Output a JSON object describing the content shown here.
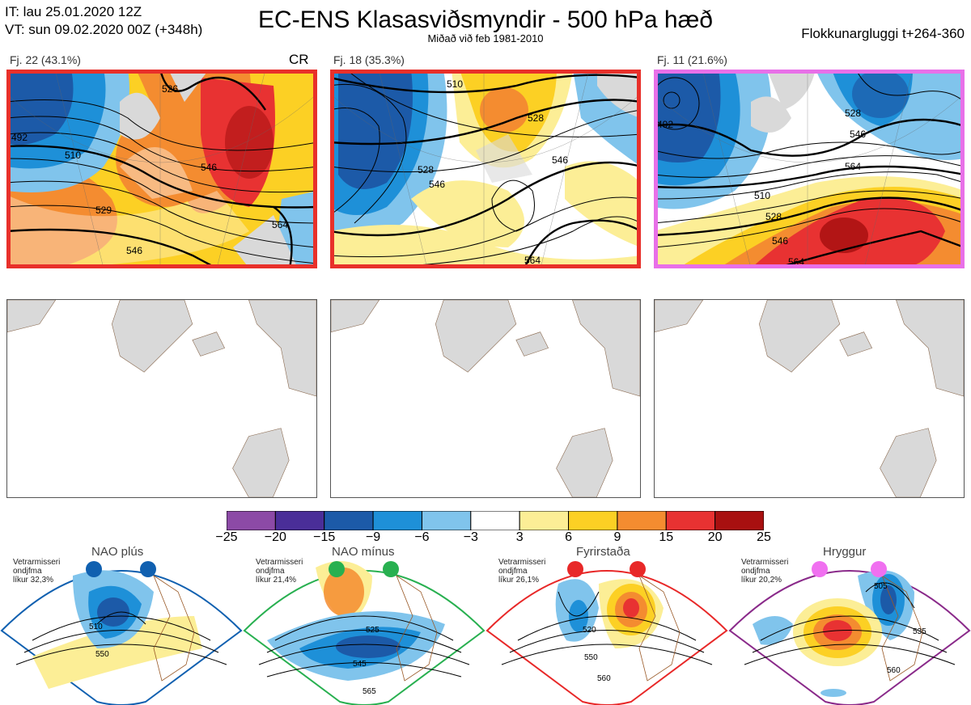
{
  "header": {
    "it": "IT: lau 25.01.2020 12Z",
    "vt": "VT: sun 09.02.2020 00Z  (+348h)",
    "title": "EC-ENS Klasasviðsmyndir - 500 hPa hæð",
    "subtitle": "Miðað við feb 1981-2010",
    "window": "Flokkunargluggi t+264-360"
  },
  "clusters": [
    {
      "label": "Fj. 22 (43.1%)",
      "tag": "CR",
      "border": "#e8302a",
      "contours": [
        "526",
        "492",
        "510",
        "529",
        "546",
        "546",
        "564"
      ]
    },
    {
      "label": "Fj. 18 (35.3%)",
      "tag": "",
      "border": "#e8302a",
      "contours": [
        "510",
        "528",
        "528",
        "546",
        "546",
        "564"
      ]
    },
    {
      "label": "Fj. 11 (21.6%)",
      "tag": "",
      "border": "#e870e8",
      "contours": [
        "528",
        "492",
        "510",
        "528",
        "546",
        "564",
        "546",
        "564"
      ]
    }
  ],
  "colorbar": {
    "colors": [
      "#8c4aa6",
      "#4a2e98",
      "#1c5aa8",
      "#1e90d8",
      "#80c4ec",
      "#ffffff",
      "#fcee96",
      "#fcd024",
      "#f48c30",
      "#e83232",
      "#a81010"
    ],
    "ticks": [
      "−25",
      "−20",
      "−15",
      "−9",
      "−6",
      "−3",
      "3",
      "6",
      "9",
      "15",
      "20",
      "25"
    ]
  },
  "regimes": [
    {
      "name": "NAO plús",
      "note": [
        "Vetrarmisseri",
        "ondjfma",
        "líkur 32,3%"
      ],
      "color": "#1060b0",
      "border": "#1060b0",
      "contours": [
        "510",
        "550"
      ]
    },
    {
      "name": "NAO mínus",
      "note": [
        "Vetrarmisseri",
        "ondjfma",
        "líkur 21,4%"
      ],
      "color": "#28b050",
      "border": "#28b050",
      "contours": [
        "525",
        "545",
        "565"
      ]
    },
    {
      "name": "Fyrirstaða",
      "note": [
        "Vetrarmisseri",
        "ondjfma",
        "líkur 26,1%"
      ],
      "color": "#e82828",
      "border": "#e82828",
      "contours": [
        "520",
        "550",
        "560"
      ]
    },
    {
      "name": "Hryggur",
      "note": [
        "Vetrarmisseri",
        "ondjfma",
        "líkur 20,2%"
      ],
      "color": "#f070f0",
      "border": "#8a2a8a",
      "contours": [
        "505",
        "535",
        "560"
      ]
    }
  ]
}
